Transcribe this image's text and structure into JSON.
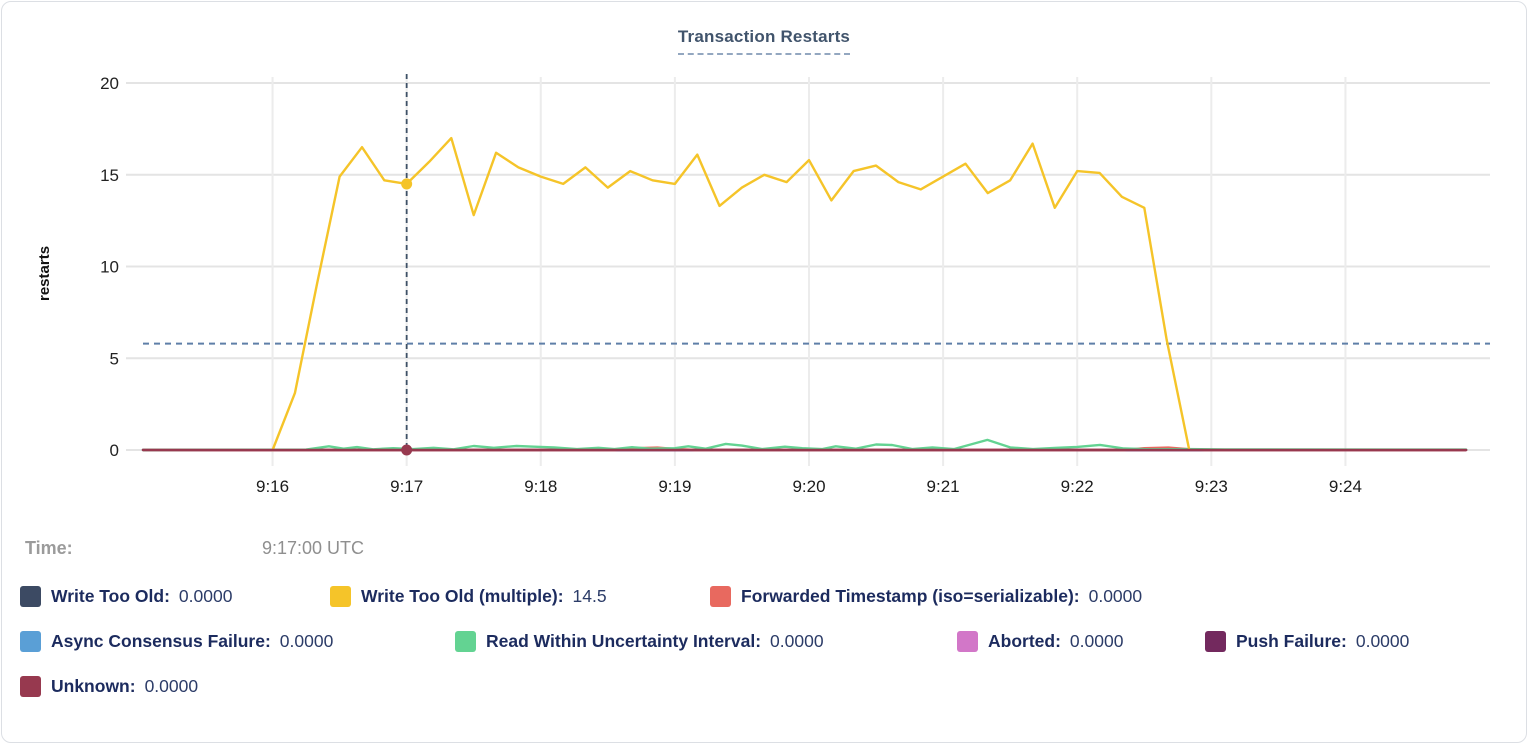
{
  "chart_data": {
    "type": "line",
    "title": "Transaction Restarts",
    "ylabel": "restarts",
    "xlabel": "",
    "x_axis": {
      "unit": "time (UTC)",
      "min_minutes": 15.034,
      "max_minutes": 25.078,
      "ticks": [
        {
          "t": 16,
          "label": "9:16"
        },
        {
          "t": 17,
          "label": "9:17"
        },
        {
          "t": 18,
          "label": "9:18"
        },
        {
          "t": 19,
          "label": "9:19"
        },
        {
          "t": 20,
          "label": "9:20"
        },
        {
          "t": 21,
          "label": "9:21"
        },
        {
          "t": 22,
          "label": "9:22"
        },
        {
          "t": 23,
          "label": "9:23"
        },
        {
          "t": 24,
          "label": "9:24"
        }
      ]
    },
    "y_axis": {
      "min": 0,
      "max": 20,
      "ticks": [
        0,
        5,
        10,
        15,
        20
      ]
    },
    "grid": true,
    "legend_position": "bottom",
    "average_line": {
      "value": 5.8,
      "color": "#5F7FA8",
      "style": "dashed"
    },
    "crosshair": {
      "t": 17.0,
      "color": "#3E5167"
    },
    "hover_dots": [
      {
        "series": "Write Too Old (multiple)",
        "value": 14.5
      },
      {
        "series": "Unknown",
        "value": 0
      }
    ],
    "series": [
      {
        "name": "Write Too Old",
        "color": "#3C4A63",
        "hover_value": "0.0000",
        "points": [
          [
            15.034,
            0
          ],
          [
            24.9,
            0
          ]
        ]
      },
      {
        "name": "Write Too Old (multiple)",
        "color": "#F5C429",
        "hover_value": "14.5",
        "points": [
          [
            16.0,
            0
          ],
          [
            16.167,
            3.1
          ],
          [
            16.333,
            9.1
          ],
          [
            16.5,
            14.9
          ],
          [
            16.667,
            16.5
          ],
          [
            16.833,
            14.7
          ],
          [
            17.0,
            14.5
          ],
          [
            17.167,
            15.7
          ],
          [
            17.333,
            17.0
          ],
          [
            17.5,
            12.8
          ],
          [
            17.667,
            16.2
          ],
          [
            17.833,
            15.4
          ],
          [
            18.0,
            14.9
          ],
          [
            18.167,
            14.5
          ],
          [
            18.333,
            15.4
          ],
          [
            18.5,
            14.3
          ],
          [
            18.667,
            15.2
          ],
          [
            18.833,
            14.7
          ],
          [
            19.0,
            14.5
          ],
          [
            19.167,
            16.1
          ],
          [
            19.333,
            13.3
          ],
          [
            19.5,
            14.3
          ],
          [
            19.667,
            15.0
          ],
          [
            19.833,
            14.6
          ],
          [
            20.0,
            15.8
          ],
          [
            20.167,
            13.6
          ],
          [
            20.333,
            15.2
          ],
          [
            20.5,
            15.5
          ],
          [
            20.667,
            14.6
          ],
          [
            20.833,
            14.2
          ],
          [
            21.0,
            14.9
          ],
          [
            21.167,
            15.6
          ],
          [
            21.333,
            14.0
          ],
          [
            21.5,
            14.7
          ],
          [
            21.667,
            16.7
          ],
          [
            21.833,
            13.2
          ],
          [
            22.0,
            15.2
          ],
          [
            22.167,
            15.1
          ],
          [
            22.333,
            13.8
          ],
          [
            22.5,
            13.2
          ],
          [
            22.667,
            6.0
          ],
          [
            22.833,
            0.1
          ]
        ]
      },
      {
        "name": "Forwarded Timestamp (iso=serializable)",
        "color": "#E8695F",
        "hover_value": "0.0000",
        "points": [
          [
            15.034,
            0
          ],
          [
            18.55,
            0
          ],
          [
            18.7,
            0.1
          ],
          [
            18.87,
            0.13
          ],
          [
            19.0,
            0.06
          ],
          [
            19.15,
            0
          ],
          [
            22.35,
            0
          ],
          [
            22.5,
            0.1
          ],
          [
            22.68,
            0.13
          ],
          [
            22.82,
            0.05
          ],
          [
            22.95,
            0
          ],
          [
            24.9,
            0
          ]
        ]
      },
      {
        "name": "Async Consensus Failure",
        "color": "#5A9FD6",
        "hover_value": "0.0000",
        "points": [
          [
            15.034,
            0
          ],
          [
            24.9,
            0
          ]
        ]
      },
      {
        "name": "Read Within Uncertainty Interval",
        "color": "#63D392",
        "hover_value": "0.0000",
        "points": [
          [
            15.034,
            0
          ],
          [
            16.25,
            0.02
          ],
          [
            16.42,
            0.2
          ],
          [
            16.53,
            0.07
          ],
          [
            16.63,
            0.16
          ],
          [
            16.75,
            0.04
          ],
          [
            16.9,
            0.1
          ],
          [
            17.05,
            0.05
          ],
          [
            17.2,
            0.12
          ],
          [
            17.35,
            0.04
          ],
          [
            17.5,
            0.22
          ],
          [
            17.65,
            0.12
          ],
          [
            17.82,
            0.22
          ],
          [
            17.95,
            0.18
          ],
          [
            18.1,
            0.14
          ],
          [
            18.27,
            0.05
          ],
          [
            18.43,
            0.12
          ],
          [
            18.55,
            0.05
          ],
          [
            18.68,
            0.15
          ],
          [
            18.82,
            0.07
          ],
          [
            19.0,
            0.1
          ],
          [
            19.1,
            0.2
          ],
          [
            19.23,
            0.07
          ],
          [
            19.38,
            0.33
          ],
          [
            19.5,
            0.24
          ],
          [
            19.65,
            0.05
          ],
          [
            19.82,
            0.18
          ],
          [
            19.95,
            0.1
          ],
          [
            20.1,
            0.05
          ],
          [
            20.2,
            0.2
          ],
          [
            20.35,
            0.07
          ],
          [
            20.5,
            0.3
          ],
          [
            20.62,
            0.27
          ],
          [
            20.77,
            0.05
          ],
          [
            20.92,
            0.14
          ],
          [
            21.08,
            0.05
          ],
          [
            21.33,
            0.55
          ],
          [
            21.5,
            0.14
          ],
          [
            21.67,
            0.05
          ],
          [
            21.85,
            0.12
          ],
          [
            22.0,
            0.17
          ],
          [
            22.17,
            0.28
          ],
          [
            22.35,
            0.08
          ],
          [
            22.55,
            0.04
          ],
          [
            22.83,
            0.05
          ],
          [
            23.1,
            0.03
          ],
          [
            24.9,
            0.02
          ]
        ]
      },
      {
        "name": "Aborted",
        "color": "#D277C8",
        "hover_value": "0.0000",
        "points": [
          [
            15.034,
            0
          ],
          [
            24.9,
            0
          ]
        ]
      },
      {
        "name": "Push Failure",
        "color": "#73295E",
        "hover_value": "0.0000",
        "points": [
          [
            15.034,
            0
          ],
          [
            24.9,
            0
          ]
        ]
      },
      {
        "name": "Unknown",
        "color": "#97394F",
        "hover_value": "0.0000",
        "points": [
          [
            15.034,
            0
          ],
          [
            24.9,
            0
          ]
        ]
      }
    ]
  },
  "time_row": {
    "label": "Time:",
    "value": "9:17:00 UTC"
  }
}
